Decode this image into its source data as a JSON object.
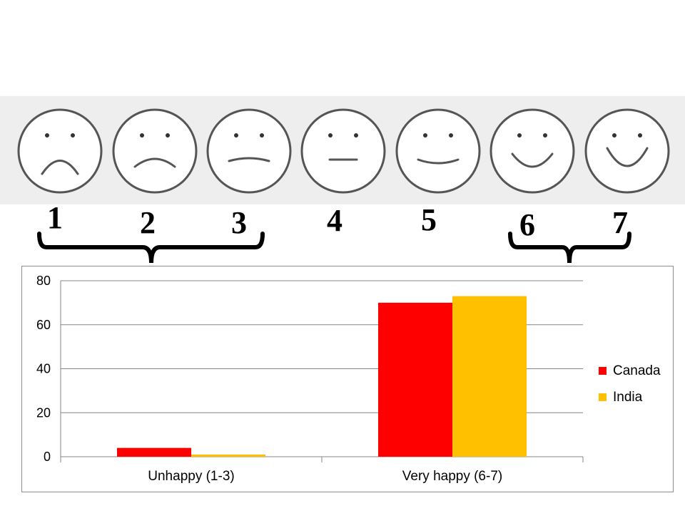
{
  "scale": {
    "faces": [
      "very-sad-face-icon",
      "sad-face-icon",
      "slightly-sad-face-icon",
      "neutral-face-icon",
      "slightly-happy-face-icon",
      "happy-face-icon",
      "very-happy-face-icon"
    ],
    "numbers": [
      "1",
      "2",
      "3",
      "4",
      "5",
      "6",
      "7"
    ]
  },
  "chart_data": {
    "type": "bar",
    "categories": [
      "Unhappy (1-3)",
      "Very happy (6-7)"
    ],
    "series": [
      {
        "name": "Canada",
        "values": [
          4,
          70
        ],
        "color": "#ff0000"
      },
      {
        "name": "India",
        "values": [
          1,
          73
        ],
        "color": "#ffc000"
      }
    ],
    "ylim": [
      0,
      80
    ],
    "yticks": [
      "0",
      "20",
      "40",
      "60",
      "80"
    ],
    "grid": true,
    "legend": "right"
  }
}
